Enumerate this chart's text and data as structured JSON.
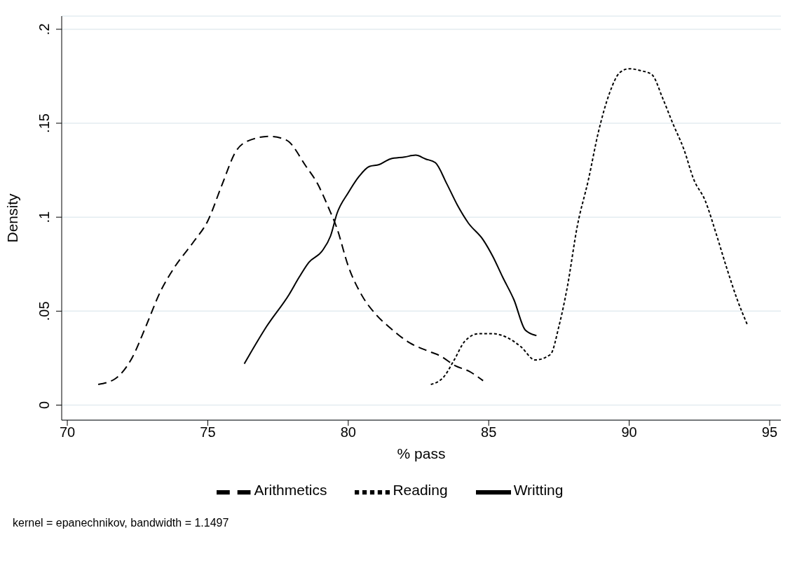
{
  "chart_data": {
    "type": "line",
    "xlabel": "% pass",
    "ylabel": "Density",
    "annotations": [
      "kernel = epanechnikov, bandwidth = 1.1497"
    ],
    "xlim": [
      69.8,
      95.4
    ],
    "xticks": [
      70,
      75,
      80,
      85,
      90,
      95
    ],
    "ylim": [
      -0.008,
      0.207
    ],
    "yticks": [
      {
        "value": 0,
        "label": "0"
      },
      {
        "value": 0.05,
        "label": ".05"
      },
      {
        "value": 0.1,
        "label": ".1"
      },
      {
        "value": 0.15,
        "label": ".15"
      },
      {
        "value": 0.2,
        "label": ".2"
      }
    ],
    "grid": "y",
    "legend": "bottom",
    "marker": "none",
    "series": [
      {
        "name": "Arithmetics",
        "color": "#000000",
        "line_style": "dashed",
        "x": [
          71.1,
          71.7,
          72.3,
          72.8,
          73.3,
          73.8,
          74.5,
          75,
          75.5,
          76,
          76.5,
          77.2,
          77.8,
          78.5,
          78.9,
          79.3,
          79.6,
          80,
          80.5,
          81,
          81.5,
          82.2,
          82.8,
          83.3,
          83.8,
          84.3,
          84.8
        ],
        "values": [
          0.011,
          0.014,
          0.025,
          0.042,
          0.06,
          0.073,
          0.087,
          0.098,
          0.117,
          0.135,
          0.141,
          0.143,
          0.141,
          0.127,
          0.118,
          0.105,
          0.094,
          0.074,
          0.058,
          0.048,
          0.041,
          0.033,
          0.029,
          0.026,
          0.021,
          0.018,
          0.013
        ]
      },
      {
        "name": "Writting",
        "color": "#000000",
        "line_style": "solid",
        "x": [
          76.3,
          77.1,
          77.9,
          78.25,
          78.6,
          79.07,
          79.37,
          79.6,
          80,
          80.4,
          80.75,
          81.1,
          81.5,
          82,
          82.4,
          82.75,
          83.1,
          83.5,
          83.9,
          84.27,
          84.8,
          85.15,
          85.5,
          85.9,
          86.3,
          86.7
        ],
        "values": [
          0.022,
          0.042,
          0.059,
          0.068,
          0.076,
          0.082,
          0.09,
          0.102,
          0.113,
          0.122,
          0.127,
          0.128,
          0.131,
          0.132,
          0.133,
          0.131,
          0.129,
          0.118,
          0.106,
          0.097,
          0.088,
          0.079,
          0.068,
          0.056,
          0.04,
          0.037
        ]
      },
      {
        "name": "Reading",
        "color": "#000000",
        "line_style": "dotted",
        "x": [
          82.94,
          83.4,
          83.77,
          84.15,
          84.65,
          85.15,
          85.65,
          86.15,
          86.65,
          87.2,
          87.5,
          87.8,
          88.15,
          88.55,
          88.9,
          89.3,
          89.67,
          90,
          90.4,
          90.8,
          91.2,
          91.55,
          91.95,
          92.3,
          92.7,
          93.1,
          93.45,
          93.85,
          94.2
        ],
        "values": [
          0.011,
          0.015,
          0.024,
          0.034,
          0.038,
          0.038,
          0.036,
          0.031,
          0.024,
          0.027,
          0.042,
          0.063,
          0.095,
          0.12,
          0.145,
          0.166,
          0.177,
          0.179,
          0.178,
          0.176,
          0.163,
          0.15,
          0.136,
          0.12,
          0.109,
          0.091,
          0.074,
          0.056,
          0.043
        ]
      }
    ]
  }
}
